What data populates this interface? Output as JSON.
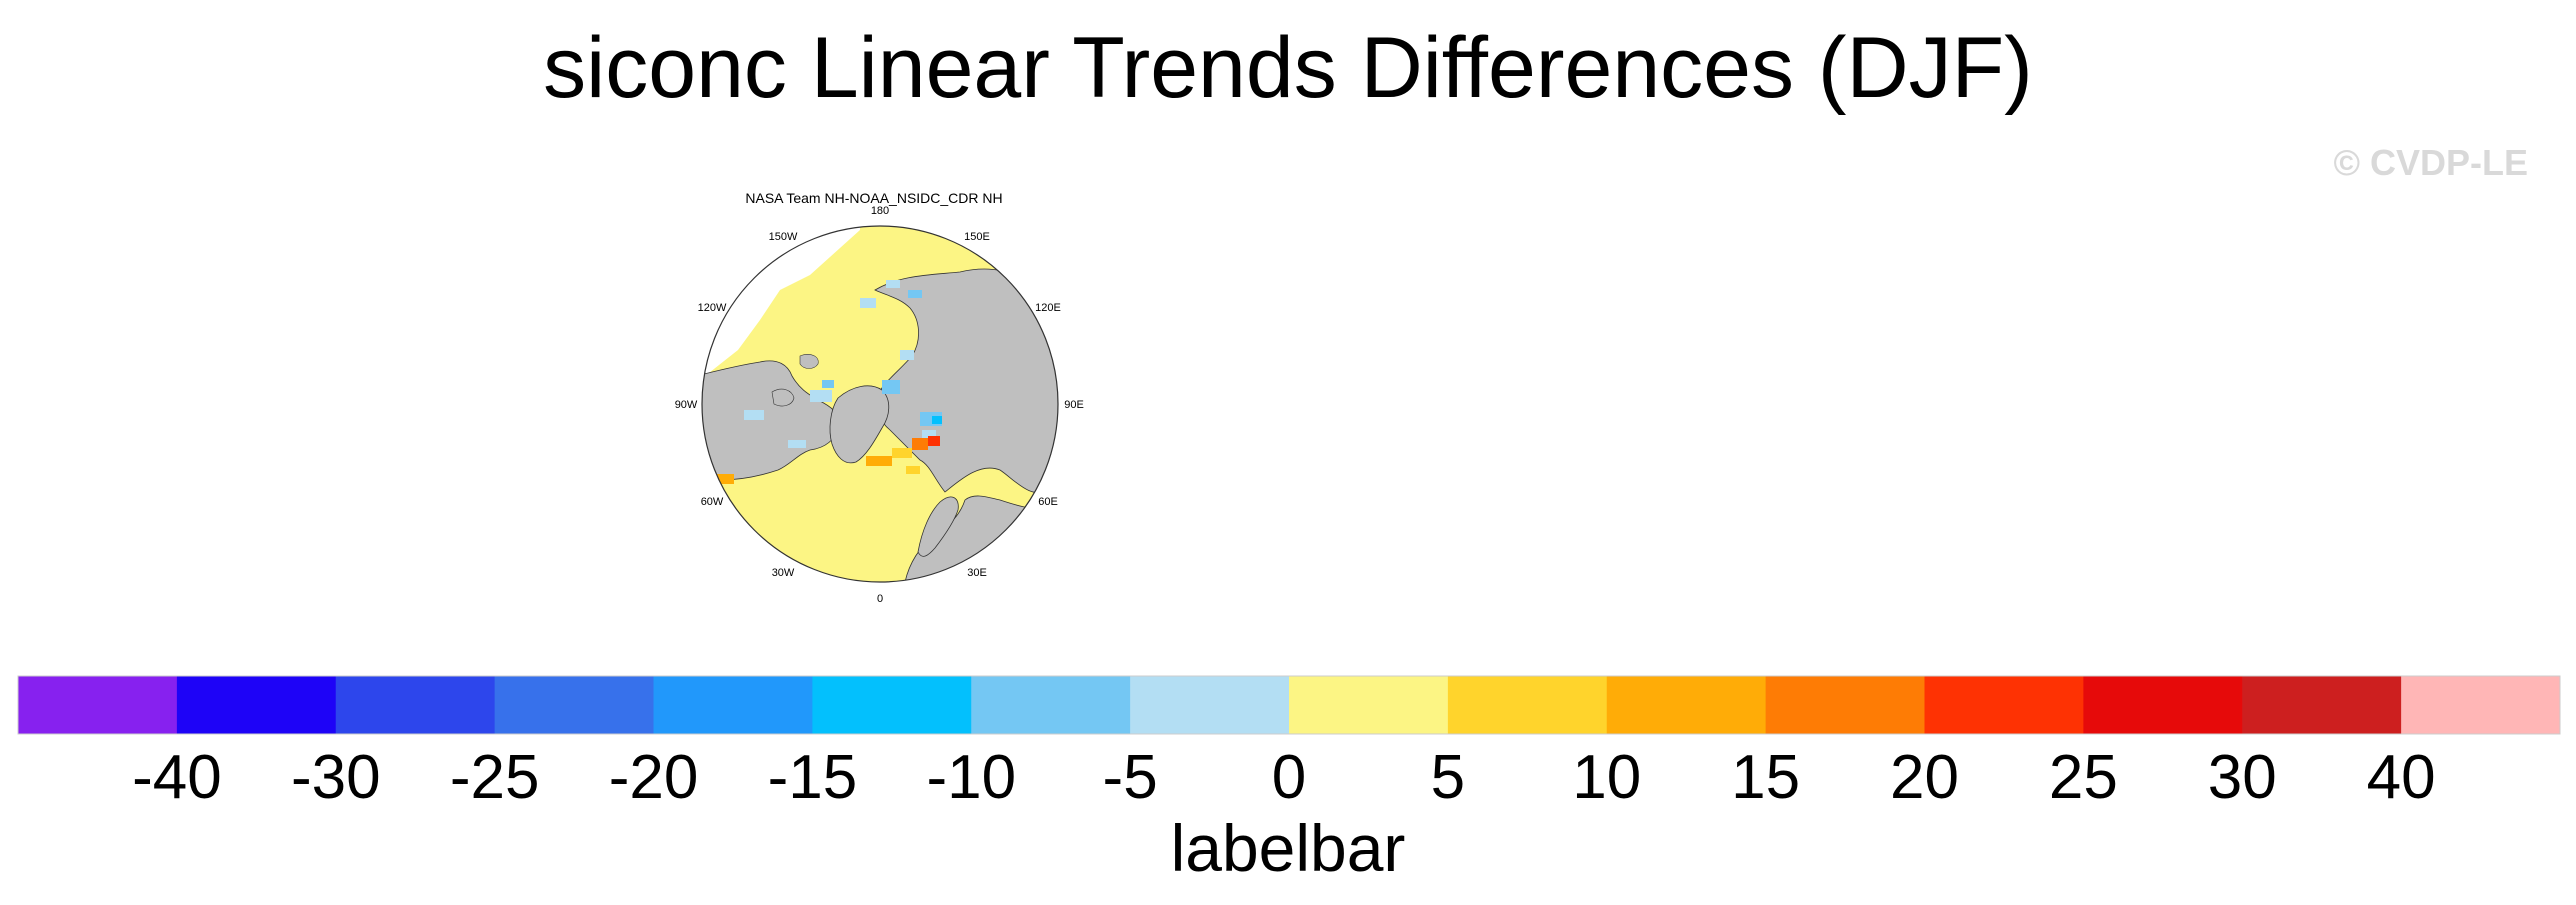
{
  "title": "siconc Linear Trends Differences (DJF)",
  "watermark": "© CVDP-LE",
  "map": {
    "subtitle": "NASA Team NH-NOAA_NSIDC_CDR NH",
    "projection": "north polar stereographic",
    "longitude_labels": [
      "180",
      "150E",
      "120E",
      "90E",
      "60E",
      "30E",
      "0",
      "30W",
      "60W",
      "90W",
      "120W",
      "150W"
    ]
  },
  "colorbar": {
    "title": "labelbar",
    "tick_labels": [
      "-40",
      "-30",
      "-25",
      "-20",
      "-15",
      "-10",
      "-5",
      "0",
      "5",
      "10",
      "15",
      "20",
      "25",
      "30",
      "40"
    ],
    "colors": [
      "#8721ef",
      "#1e03f7",
      "#2d46ec",
      "#3771eb",
      "#2198fb",
      "#03c0fd",
      "#74c7f3",
      "#b3def3",
      "#fcf584",
      "#ffd42c",
      "#ffac07",
      "#fe7c05",
      "#fe3203",
      "#e60a0a",
      "#cd1f1f",
      "#ffb6b6"
    ]
  },
  "colors": {
    "land": "#bfbfbf",
    "no_data": "#ffffff",
    "near_zero_positive": "#fcf584"
  }
}
